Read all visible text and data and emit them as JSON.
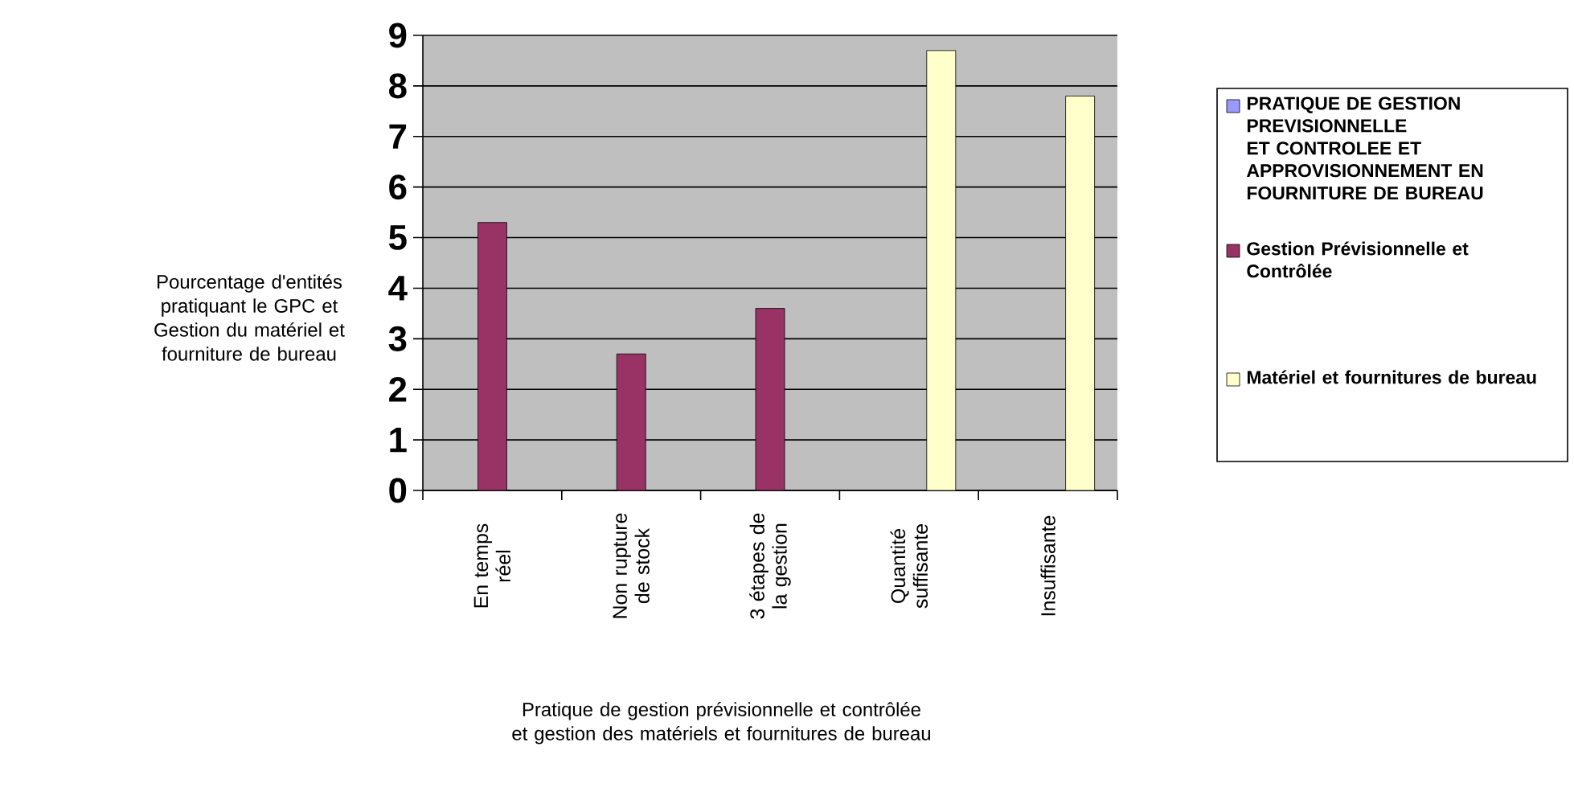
{
  "chart_data": {
    "type": "bar",
    "categories": [
      "En temps réel",
      "Non rupture de stock",
      "3 étapes de la gestion",
      "Quantité suffisante",
      "Insuffisante"
    ],
    "series": [
      {
        "name": "PRATIQUE DE GESTION PREVISIONNELLE ET CONTROLEE ET APPROVISIONNEMENT EN FOURNITURE DE BUREAU",
        "color": "#9999ff",
        "values": [
          null,
          null,
          null,
          null,
          null
        ]
      },
      {
        "name": "Gestion Prévisionnelle et Contrôlée",
        "color": "#993366",
        "values": [
          5.3,
          2.7,
          3.6,
          null,
          null
        ]
      },
      {
        "name": "Matériel et fournitures de bureau",
        "color": "#ffffcc",
        "values": [
          null,
          null,
          null,
          8.7,
          7.8
        ]
      }
    ],
    "ylabel": "Pourcentage d'entités pratiquant le GPC et Gestion du matériel et fourniture de bureau",
    "xlabel": "Pratique de gestion prévisionnelle et contrôlée et gestion des matériels et fournitures de bureau",
    "ylim": [
      0,
      9
    ],
    "yticks": [
      0,
      1,
      2,
      3,
      4,
      5,
      6,
      7,
      8,
      9
    ],
    "grid": "y",
    "legend": "right"
  }
}
